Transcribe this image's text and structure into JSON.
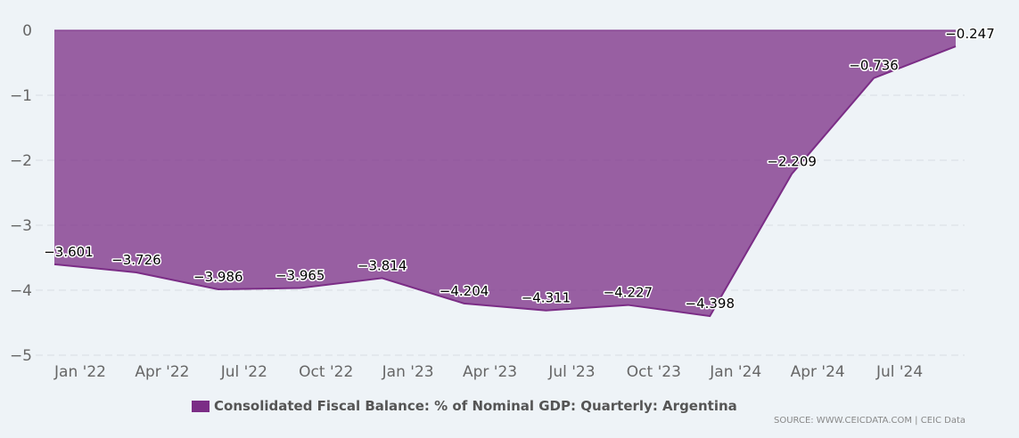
{
  "chart_data": {
    "type": "area",
    "title": "",
    "xlabel": "",
    "ylabel": "",
    "ylim": [
      -5,
      0
    ],
    "yticks": [
      0,
      -1,
      -2,
      -3,
      -4,
      -5
    ],
    "xtick_labels": [
      "Jan '22",
      "Apr '22",
      "Jul '22",
      "Oct '22",
      "Jan '23",
      "Apr '23",
      "Jul '23",
      "Oct '23",
      "Jan '24",
      "Apr '24",
      "Jul '24"
    ],
    "grid": true,
    "legend_position": "bottom",
    "series": [
      {
        "name": "Consolidated Fiscal Balance: % of Nominal GDP: Quarterly: Argentina",
        "color": "#7b2d86",
        "values": [
          -3.601,
          -3.726,
          -3.986,
          -3.965,
          -3.814,
          -4.204,
          -4.311,
          -4.227,
          -4.398,
          -2.209,
          -0.736,
          -0.247
        ],
        "labels": [
          "−3.601",
          "−3.726",
          "−3.986",
          "−3.965",
          "−3.814",
          "−4.204",
          "−4.311",
          "−4.227",
          "−4.398",
          "−2.209",
          "−0.736",
          "−0.247"
        ]
      }
    ],
    "ytick_labels": [
      "0",
      "−1",
      "−2",
      "−3",
      "−4",
      "−5"
    ]
  },
  "source": "SOURCE: WWW.CEICDATA.COM | CEIC Data"
}
